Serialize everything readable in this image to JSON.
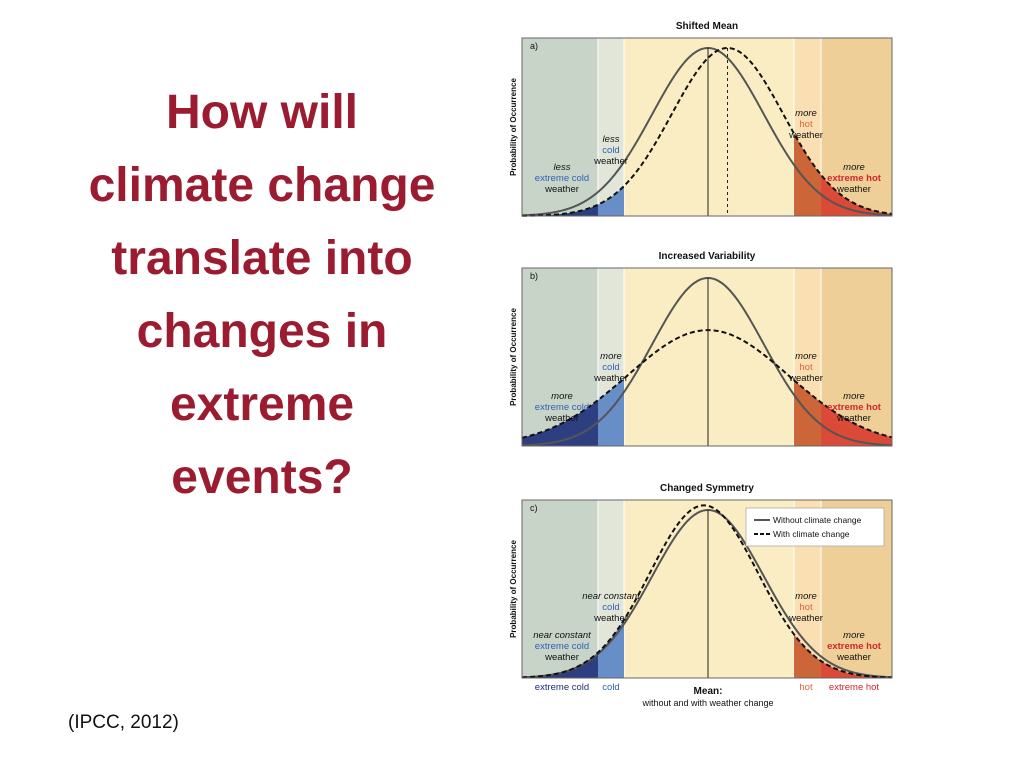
{
  "slide": {
    "title_lines": [
      "How will",
      "climate change",
      "translate into",
      "changes in",
      "extreme",
      "events?"
    ],
    "citation": "(IPCC, 2012)"
  },
  "colors": {
    "title": "#9b1b30",
    "cold_extreme_band": "#c9d4c9",
    "cold_band": "#e2e6d9",
    "center_band": "#fbedc3",
    "hot_band": "#f9dfb2",
    "hot_extreme_band": "#efcf98",
    "cold_fill": "#1c2f78",
    "cool_fill": "#5a84c4",
    "hot_fill": "#c7582a",
    "hot_extreme_fill": "#d83a2c",
    "blue_text": "#2d62b5",
    "hot_text": "#e0623a",
    "extreme_hot_text": "#d4262a",
    "without_curve": "#555555",
    "with_curve": "#111111"
  },
  "figure": {
    "y_axis_label": "Probability of Occurrence",
    "legend": {
      "without": "Without climate change",
      "with": "With climate change"
    },
    "panels": [
      {
        "letter": "a)",
        "title": "Shifted Mean",
        "without": {
          "mean": 0,
          "sd": 1,
          "skew": 0
        },
        "with": {
          "mean": 0.35,
          "sd": 1,
          "skew": 0
        },
        "dashed_mean_line": true,
        "cold_label": {
          "lines": [
            "less",
            "cold",
            "weather"
          ]
        },
        "extreme_cold_label": {
          "lines": [
            "less",
            "extreme cold",
            "weather"
          ]
        },
        "hot_label": {
          "lines": [
            "more",
            "hot",
            "weather"
          ]
        },
        "extreme_hot_label": {
          "lines": [
            "more",
            "extreme hot",
            "weather"
          ]
        }
      },
      {
        "letter": "b)",
        "title": "Increased Variability",
        "without": {
          "mean": 0,
          "sd": 1,
          "skew": 0
        },
        "with": {
          "mean": 0,
          "sd": 1.45,
          "skew": 0
        },
        "dashed_mean_line": false,
        "cold_label": {
          "lines": [
            "more",
            "cold",
            "weather"
          ]
        },
        "extreme_cold_label": {
          "lines": [
            "more",
            "extreme cold",
            "weather"
          ]
        },
        "hot_label": {
          "lines": [
            "more",
            "hot",
            "weather"
          ]
        },
        "extreme_hot_label": {
          "lines": [
            "more",
            "extreme hot",
            "weather"
          ]
        }
      },
      {
        "letter": "c)",
        "title": "Changed Symmetry",
        "without": {
          "mean": 0,
          "sd": 1,
          "skew": 0
        },
        "with": {
          "mean": -0.3,
          "sd": 1,
          "skew": 0.3
        },
        "dashed_mean_line": false,
        "show_legend": true,
        "cold_label": {
          "lines": [
            "near constant",
            "cold",
            "weather"
          ]
        },
        "extreme_cold_label": {
          "lines": [
            "near constant",
            "extreme cold",
            "weather"
          ]
        },
        "hot_label": {
          "lines": [
            "more",
            "hot",
            "weather"
          ]
        },
        "extreme_hot_label": {
          "lines": [
            "more",
            "extreme hot",
            "weather"
          ]
        }
      }
    ],
    "bottom_axis": {
      "extreme_cold": "extreme cold",
      "cold": "cold",
      "mean_title": "Mean:",
      "mean_subtitle": "without and with weather change",
      "hot": "hot",
      "extreme_hot": "extreme hot"
    }
  }
}
